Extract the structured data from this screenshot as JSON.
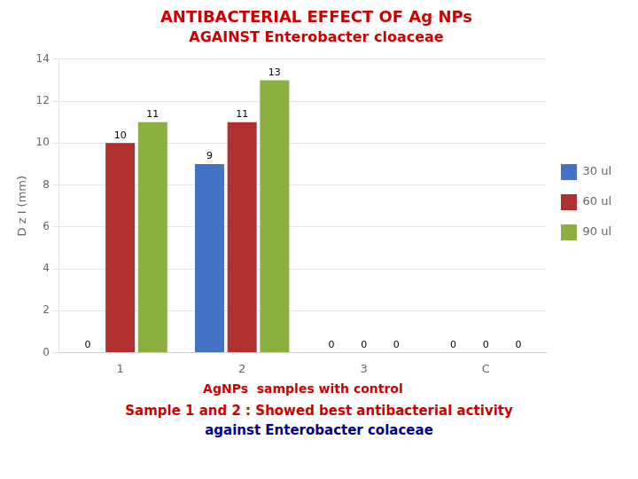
{
  "chart_data": {
    "type": "bar",
    "title": "ANTIBACTERIAL EFFECT OF Ag NPs",
    "subtitle": "AGAINST Enterobacter cloaceae",
    "categories": [
      "1",
      "2",
      "3",
      "C"
    ],
    "series": [
      {
        "name": "30 ul",
        "color": "#4472C4",
        "values": [
          0,
          9,
          0,
          0
        ]
      },
      {
        "name": "60 ul",
        "color": "#B03030",
        "values": [
          10,
          11,
          0,
          0
        ]
      },
      {
        "name": "90 ul",
        "color": "#8CB040",
        "values": [
          11,
          13,
          0,
          0
        ]
      }
    ],
    "xlabel": "AgNPs  samples with control",
    "ylabel": "D z I (mm)",
    "ylim": [
      0,
      14
    ],
    "yticks": [
      0,
      2,
      4,
      6,
      8,
      10,
      12,
      14
    ],
    "grid": true,
    "legend": "right",
    "data_labels": true,
    "annotations": [
      "Sample 1 and 2 : Showed best antibacterial activity",
      "against Enterobacter colaceae"
    ]
  }
}
